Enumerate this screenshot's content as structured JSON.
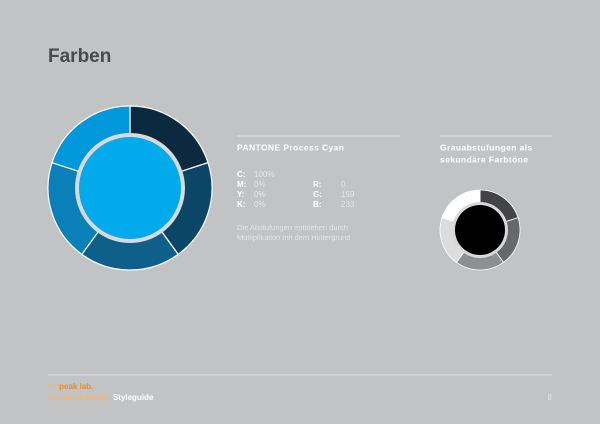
{
  "header": {
    "title": "Farben"
  },
  "primary": {
    "title": "PANTONE Process Cyan",
    "cmyk": [
      {
        "label": "C:",
        "value": "100%"
      },
      {
        "label": "M:",
        "value": "0%"
      },
      {
        "label": "Y:",
        "value": "0%"
      },
      {
        "label": "K:",
        "value": "0%"
      }
    ],
    "rgb": [
      {
        "label": "R:",
        "value": "0"
      },
      {
        "label": "G:",
        "value": "159"
      },
      {
        "label": "B:",
        "value": "233"
      }
    ],
    "note": [
      "Die Abstufungen entstehen durch",
      "Multiplikation mit dem Hintergrund"
    ]
  },
  "secondary": {
    "title": [
      "Grauabstufungen als",
      "sekundäre Farbtöne"
    ]
  },
  "footer": {
    "brand": [
      "the",
      "peak lab."
    ],
    "subtitle": [
      "Corporate Design",
      "Styleguide"
    ],
    "page": "8"
  }
}
